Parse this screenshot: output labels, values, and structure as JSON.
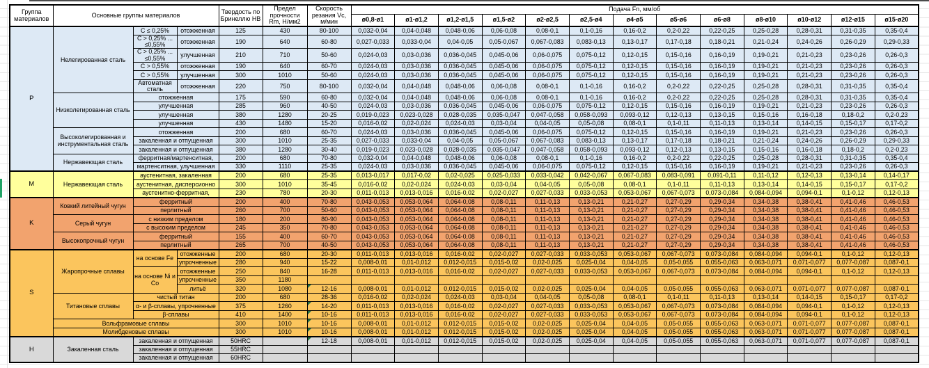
{
  "sheet": {
    "top_divider_color": "#4a4a4a",
    "left_marker_color": "#21A366",
    "gridline_color": "#e6e6e6"
  },
  "table": {
    "colors": {
      "p": "#DDE9F5",
      "m": "#FFFF9C",
      "k": "#F2A36E",
      "s": "#FBC55D",
      "h": "#D9D9D9",
      "header": "#FFFFFF",
      "flag": "#217346",
      "border": "#000000"
    },
    "header": {
      "col_group": "Группа материалов",
      "col_main_groups": "Основные группы материалов",
      "col_hardness": "Твердость по Бринеллю НВ",
      "col_strength": "Предел прочности Rm, Н/мм2",
      "col_speed": "Скорость резания Vc, м/мин",
      "feed_title": "Подача Fn, мм/об",
      "feed_columns": [
        "ø0,8-ø1",
        "ø1-ø1,2",
        "ø1,2-ø1,5",
        "ø1,5-ø2",
        "ø2-ø2,5",
        "ø2,5-ø4",
        "ø4-ø5",
        "ø5-ø6",
        "ø6-ø8",
        "ø8-ø10",
        "ø10-ø12",
        "ø12-ø15",
        "ø15-ø20"
      ],
      "feed_column_count": 13
    },
    "feed_patterns": {
      "A": [
        "0,032-0,04",
        "0,04-0,048",
        "0,048-0,06",
        "0,06-0,08",
        "0,08-0,1",
        "0,1-0,16",
        "0,16-0,2",
        "0,2-0,22",
        "0,22-0,25",
        "0,25-0,28",
        "0,28-0,31",
        "0,31-0,35",
        "0,35-0,4"
      ],
      "B": [
        "0,027-0,033",
        "0,033-0,04",
        "0,04-0,05",
        "0,05-0,067",
        "0,067-0,083",
        "0,083-0,13",
        "0,13-0,17",
        "0,17-0,18",
        "0,18-0,21",
        "0,21-0,24",
        "0,24-0,26",
        "0,26-0,29",
        "0,29-0,33"
      ],
      "C": [
        "0,024-0,03",
        "0,03-0,036",
        "0,036-0,045",
        "0,045-0,06",
        "0,06-0,075",
        "0,075-0,12",
        "0,12-0,15",
        "0,15-0,16",
        "0,16-0,19",
        "0,19-0,21",
        "0,21-0,23",
        "0,23-0,26",
        "0,26-0,3"
      ],
      "D": [
        "0,019-0,023",
        "0,023-0,028",
        "0,028-0,035",
        "0,035-0,047",
        "0,047-0,058",
        "0,058-0,093",
        "0,093-0,12",
        "0,12-0,13",
        "0,13-0,15",
        "0,15-0,16",
        "0,16-0,18",
        "0,18-0,2",
        "0,2-0,23"
      ],
      "E": [
        "0,016-0,02",
        "0,02-0,024",
        "0,024-0,03",
        "0,03-0,04",
        "0,04-0,05",
        "0,05-0,08",
        "0,08-0,1",
        "0,1-0,11",
        "0,11-0,13",
        "0,13-0,14",
        "0,14-0,15",
        "0,15-0,17",
        "0,17-0,2"
      ],
      "F": [
        "0,013-0,017",
        "0,017-0,02",
        "0,02-0,025",
        "0,025-0,033",
        "0,033-0,042",
        "0,042-0,067",
        "0,067-0,083",
        "0,083-0,091",
        "0,091-0,11",
        "0,11-0,12",
        "0,12-0,13",
        "0,13-0,14",
        "0,14-0,17"
      ],
      "G": [
        "0,011-0,013",
        "0,013-0,016",
        "0,016-0,02",
        "0,02-0,027",
        "0,027-0,033",
        "0,033-0,053",
        "0,053-0,067",
        "0,067-0,073",
        "0,073-0,084",
        "0,084-0,094",
        "0,094-0,1",
        "0,1-0,12",
        "0,12-0,13"
      ],
      "K": [
        "0,043-0,053",
        "0,053-0,064",
        "0,064-0,08",
        "0,08-0,11",
        "0,11-0,13",
        "0,13-0,21",
        "0,21-0,27",
        "0,27-0,29",
        "0,29-0,34",
        "0,34-0,38",
        "0,38-0,41",
        "0,41-0,46",
        "0,46-0,53"
      ],
      "H2": [
        "0,008-0,01",
        "0,01-0,012",
        "0,012-0,015",
        "0,015-0,02",
        "0,02-0,025",
        "0,025-0,04",
        "0,04-0,05",
        "0,05-0,055",
        "0,055-0,063",
        "0,063-0,071",
        "0,071-0,077",
        "0,077-0,087",
        "0,087-0,1"
      ],
      "X": [
        "",
        "",
        "",
        "",
        "",
        "",
        "",
        "",
        "",
        "",
        "",
        "",
        ""
      ]
    },
    "material_groups": [
      {
        "id": "P",
        "color": "p",
        "rows": [
          {
            "lead": [
              {
                "t": "Нелегированная сталь",
                "rs": 6
              },
              {
                "t": "C ≤ 0,25%"
              },
              {
                "t": "отожженная"
              }
            ],
            "hb": "125",
            "rm": "430",
            "vc": "80-100",
            "feeds": "A"
          },
          {
            "tall": true,
            "lead": [
              {
                "t": "C > 0,25% ... ≤0,55%"
              },
              {
                "t": "отожженная"
              }
            ],
            "hb": "190",
            "rm": "640",
            "vc": "60-80",
            "feeds": "B"
          },
          {
            "tall": true,
            "lead": [
              {
                "t": "C > 0,25% ... ≤0,55%"
              },
              {
                "t": "улучшенная"
              }
            ],
            "hb": "210",
            "rm": "710",
            "vc": "50-60",
            "feeds": "C"
          },
          {
            "lead": [
              {
                "t": "C > 0,55%"
              },
              {
                "t": "отожженная"
              }
            ],
            "hb": "190",
            "rm": "640",
            "vc": "60-70",
            "feeds": "C"
          },
          {
            "lead": [
              {
                "t": "C > 0,55%"
              },
              {
                "t": "улучшенная"
              }
            ],
            "hb": "300",
            "rm": "1010",
            "vc": "50-60",
            "feeds": "C"
          },
          {
            "tall": true,
            "lead": [
              {
                "t": "Автоматная сталь"
              },
              {
                "t": "отожженная"
              }
            ],
            "hb": "220",
            "rm": "750",
            "vc": "80-100",
            "feeds": "A"
          },
          {
            "lead": [
              {
                "t": "Низколегированная сталь",
                "rs": 4
              },
              {
                "t": "отожженная",
                "cs": 2
              }
            ],
            "hb": "175",
            "rm": "590",
            "vc": "60-80",
            "feeds": "A"
          },
          {
            "lead": [
              {
                "t": "улучшенная",
                "cs": 2
              }
            ],
            "hb": "285",
            "rm": "960",
            "vc": "40-50",
            "feeds": "C"
          },
          {
            "lead": [
              {
                "t": "улучшенная",
                "cs": 2
              }
            ],
            "hb": "380",
            "rm": "1280",
            "vc": "20-25",
            "feeds": "D"
          },
          {
            "lead": [
              {
                "t": "улучшенная",
                "cs": 2
              }
            ],
            "hb": "430",
            "rm": "1480",
            "vc": "15-20",
            "feeds": "E"
          },
          {
            "lead": [
              {
                "t": "Высоколегированная и инструментальная сталь",
                "rs": 3
              },
              {
                "t": "отожженная",
                "cs": 2
              }
            ],
            "hb": "200",
            "rm": "680",
            "vc": "60-70",
            "feeds": "C"
          },
          {
            "lead": [
              {
                "t": "закаленная и отпущенная",
                "cs": 2
              }
            ],
            "hb": "300",
            "rm": "1010",
            "vc": "25-35",
            "feeds": "B"
          },
          {
            "lead": [
              {
                "t": "закаленная и отпущенная",
                "cs": 2
              }
            ],
            "hb": "380",
            "rm": "1280",
            "vc": "30-40",
            "feeds": "D"
          },
          {
            "lead": [
              {
                "t": "Нержавеющая сталь",
                "rs": 2
              },
              {
                "t": "ферритная/мартенситная,",
                "cs": 2
              }
            ],
            "hb": "200",
            "rm": "680",
            "vc": "70-80",
            "feeds": "A"
          },
          {
            "lead": [
              {
                "t": "мартенситная, улучшенная",
                "cs": 2
              }
            ],
            "hb": "330",
            "rm": "1110",
            "vc": "25-35",
            "feeds": "C"
          }
        ]
      },
      {
        "id": "M",
        "color": "m",
        "rows": [
          {
            "lead": [
              {
                "t": "Нержавеющая сталь",
                "rs": 3
              },
              {
                "t": "аустенитная, закаленная",
                "cs": 2
              }
            ],
            "hb": "200",
            "rm": "680",
            "vc": "25-35",
            "feeds": "F"
          },
          {
            "lead": [
              {
                "t": "аустенитная, дисперсионно",
                "cs": 2
              }
            ],
            "hb": "300",
            "rm": "1010",
            "vc": "35-45",
            "feeds": "E"
          },
          {
            "lead": [
              {
                "t": "аустенитно-ферритная,",
                "cs": 2
              }
            ],
            "hb": "230",
            "rm": "780",
            "vc": "20-30",
            "feeds": "G"
          }
        ]
      },
      {
        "id": "K",
        "color": "k",
        "rows": [
          {
            "lead": [
              {
                "t": "Ковкий литейный чугун",
                "rs": 2
              },
              {
                "t": "ферритный",
                "cs": 2
              }
            ],
            "hb": "200",
            "rm": "400",
            "vc": "70-80",
            "feeds": "K"
          },
          {
            "lead": [
              {
                "t": "перлитный",
                "cs": 2
              }
            ],
            "hb": "260",
            "rm": "700",
            "vc": "50-60",
            "feeds": "K"
          },
          {
            "lead": [
              {
                "t": "Серый чугун",
                "rs": 2
              },
              {
                "t": "с низким пределом",
                "cs": 2
              }
            ],
            "hb": "180",
            "rm": "200",
            "vc": "80-90",
            "feeds": "K"
          },
          {
            "lead": [
              {
                "t": "с высоким пределом",
                "cs": 2
              }
            ],
            "hb": "245",
            "rm": "350",
            "vc": "70-80",
            "feeds": "K"
          },
          {
            "lead": [
              {
                "t": "Высокопрочный чугун",
                "rs": 2
              },
              {
                "t": "ферритный",
                "cs": 2
              }
            ],
            "hb": "155",
            "rm": "400",
            "vc": "60-70",
            "feeds": "K"
          },
          {
            "lead": [
              {
                "t": "перлитный",
                "cs": 2
              }
            ],
            "hb": "265",
            "rm": "700",
            "vc": "40-50",
            "feeds": "K"
          }
        ]
      },
      {
        "id": "S",
        "color": "s",
        "rows": [
          {
            "lead": [
              {
                "t": "Жаропрочные сплавы",
                "rs": 5
              },
              {
                "t": "на основе Fe",
                "rs": 2
              },
              {
                "t": "отожженные"
              }
            ],
            "hb": "200",
            "rm": "680",
            "vc": "20-30",
            "feeds": "G"
          },
          {
            "lead": [
              {
                "t": "упрочненные"
              }
            ],
            "hb": "280",
            "rm": "940",
            "vc": "15-22",
            "feeds": "H2"
          },
          {
            "lead": [
              {
                "t": "на основе Ni и Co",
                "rs": 3
              },
              {
                "t": "отожженные"
              }
            ],
            "hb": "250",
            "rm": "840",
            "vc": "16-28",
            "feeds": "G"
          },
          {
            "lead": [
              {
                "t": "упрочненные"
              }
            ],
            "hb": "350",
            "rm": "1180",
            "vc": "",
            "feeds": "X"
          },
          {
            "lead": [
              {
                "t": "литьё"
              }
            ],
            "hb": "320",
            "rm": "1080",
            "vc": "12-16",
            "flag": true,
            "feeds": "H2"
          },
          {
            "lead": [
              {
                "t": "Титановые сплавы",
                "rs": 3
              },
              {
                "t": "чистый титан",
                "cs": 2
              }
            ],
            "hb": "200",
            "rm": "680",
            "vc": "28-36",
            "feeds": "E"
          },
          {
            "lead": [
              {
                "t": "α- и β-сплавы, упрочненные",
                "cs": 2
              }
            ],
            "hb": "375",
            "rm": "1260",
            "vc": "14-20",
            "flag": true,
            "feeds": "G"
          },
          {
            "lead": [
              {
                "t": "β-сплавы",
                "cs": 2
              }
            ],
            "hb": "410",
            "rm": "1400",
            "vc": "10-16",
            "flag": true,
            "feeds": "G"
          },
          {
            "lead": [
              {
                "t": "Вольфрамовые сплавы",
                "cs": 3
              }
            ],
            "hb": "300",
            "rm": "1010",
            "vc": "10-16",
            "flag": true,
            "feeds": "H2"
          },
          {
            "lead": [
              {
                "t": "Молибденовые сплавы",
                "cs": 3
              }
            ],
            "hb": "300",
            "rm": "1010",
            "vc": "10-16",
            "flag": true,
            "feeds": "H2"
          }
        ]
      },
      {
        "id": "H",
        "color": "h",
        "rows": [
          {
            "lead": [
              {
                "t": "Закаленная сталь",
                "rs": 3
              },
              {
                "t": "закаленная и отпущенная",
                "cs": 2
              }
            ],
            "hb": "50HRC",
            "rm": "",
            "vc": "12-18",
            "flag": true,
            "feeds": "H2"
          },
          {
            "lead": [
              {
                "t": "закаленная и отпущенная",
                "cs": 2
              }
            ],
            "hb": "55HRC",
            "rm": "",
            "vc": "",
            "feeds": "X"
          },
          {
            "lead": [
              {
                "t": "закаленная и отпущенная",
                "cs": 2
              }
            ],
            "hb": "60HRC",
            "rm": "",
            "vc": "",
            "feeds": "X"
          }
        ]
      }
    ]
  }
}
